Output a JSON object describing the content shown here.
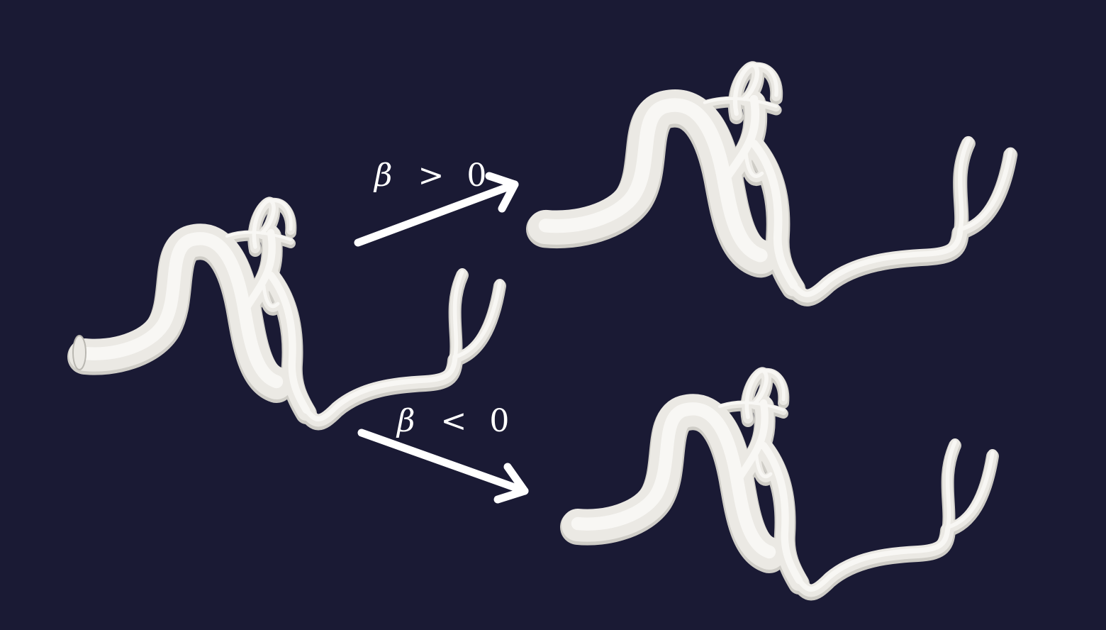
{
  "colors": {
    "background": "#1a1a34",
    "vessel": "#ebe9e4",
    "vessel_shade": "#cfcdc7",
    "vessel_highlight": "#f8f7f4",
    "arrow": "#ffffff"
  },
  "models": [
    {
      "name": "original-vessel-model"
    },
    {
      "name": "beta-positive-vessel-model"
    },
    {
      "name": "beta-negative-vessel-model"
    }
  ],
  "arrows": [
    {
      "name": "beta-positive-arrow",
      "label": {
        "symbol": "β",
        "operator": ">",
        "value": "0"
      }
    },
    {
      "name": "beta-negative-arrow",
      "label": {
        "symbol": "β",
        "operator": "<",
        "value": "0"
      }
    }
  ]
}
